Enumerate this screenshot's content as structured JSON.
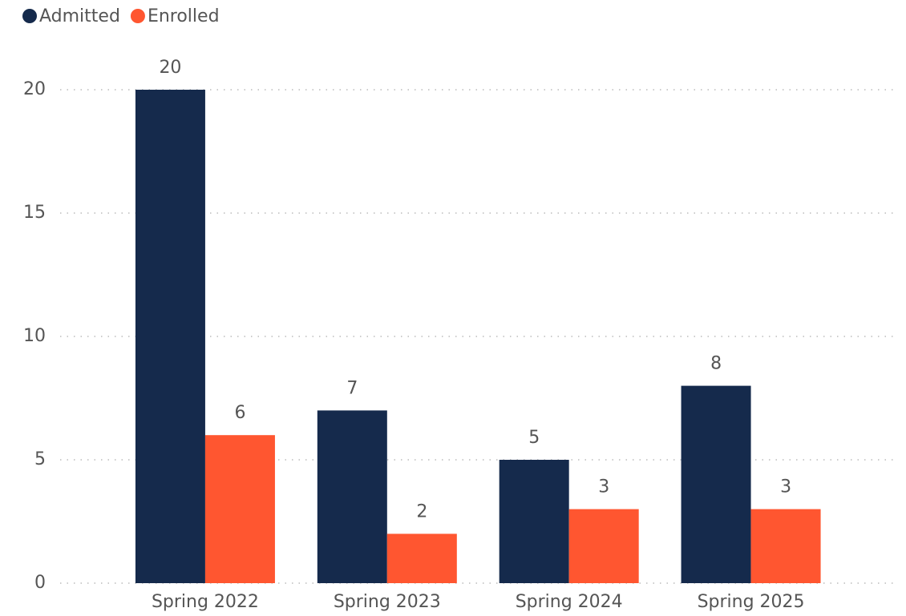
{
  "chart_data": {
    "type": "bar",
    "categories": [
      "Spring 2022",
      "Spring 2023",
      "Spring 2024",
      "Spring 2025"
    ],
    "series": [
      {
        "name": "Admitted",
        "color": "#152a4c",
        "values": [
          20,
          7,
          5,
          8
        ]
      },
      {
        "name": "Enrolled",
        "color": "#ff5630",
        "values": [
          6,
          2,
          3,
          3
        ]
      }
    ],
    "ylim": [
      0,
      20
    ],
    "yticks": [
      0,
      5,
      10,
      15,
      20
    ],
    "grid": true,
    "legend": "top-left"
  }
}
